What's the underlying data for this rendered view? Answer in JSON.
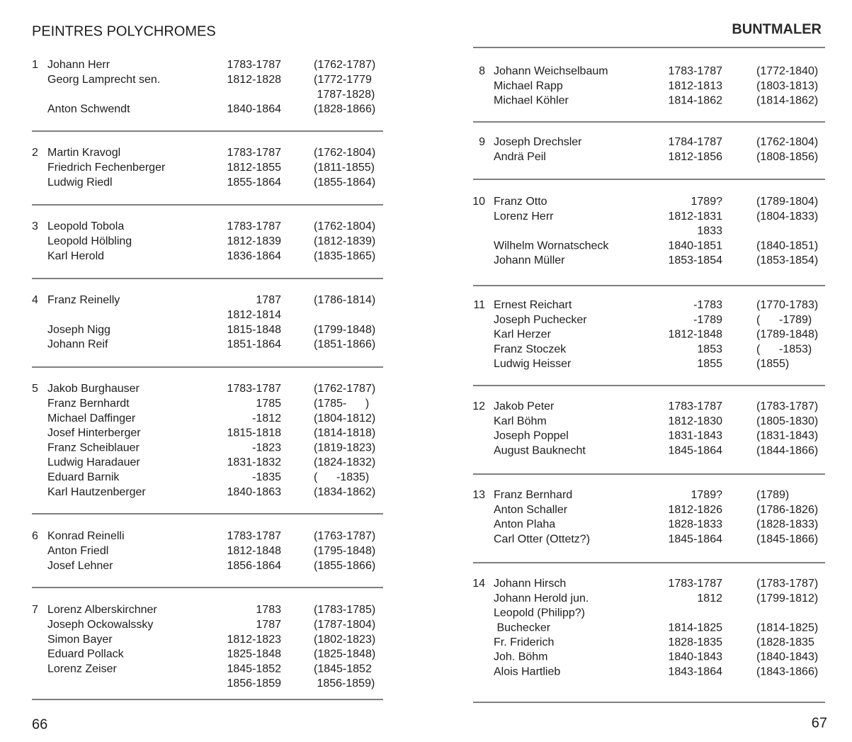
{
  "left": {
    "header": "PEINTRES POLYCHROMES",
    "page_number": "66",
    "groups": [
      {
        "number": 1,
        "rows": [
          {
            "name": "Johann Herr",
            "years": "1783-1787",
            "range": "(1762-1787)"
          },
          {
            "name": "Georg Lamprecht sen.",
            "years": "1812-1828",
            "range": "(1772-1779"
          },
          {
            "range": " 1787-1828)"
          },
          {
            "name": "Anton Schwendt",
            "years": "1840-1864",
            "range": "(1828-1866)"
          }
        ]
      },
      {
        "number": 2,
        "rows": [
          {
            "name": "Martin Kravogl",
            "years": "1783-1787",
            "range": "(1762-1804)"
          },
          {
            "name": "Friedrich Fechenberger",
            "years": "1812-1855",
            "range": "(1811-1855)"
          },
          {
            "name": "Ludwig Riedl",
            "years": "1855-1864",
            "range": "(1855-1864)"
          }
        ]
      },
      {
        "number": 3,
        "rows": [
          {
            "name": "Leopold Tobola",
            "years": "1783-1787",
            "range": "(1762-1804)"
          },
          {
            "name": "Leopold Hölbling",
            "years": "1812-1839",
            "range": "(1812-1839)"
          },
          {
            "name": "Karl Herold",
            "years": "1836-1864",
            "range": "(1835-1865)"
          }
        ]
      },
      {
        "number": 4,
        "rows": [
          {
            "name": "Franz Reinelly",
            "years": "1787",
            "range": "(1786-1814)"
          },
          {
            "years": "1812-1814"
          },
          {
            "name": "Joseph Nigg",
            "years": "1815-1848",
            "range": "(1799-1848)"
          },
          {
            "name": "Johann Reif",
            "years": "1851-1864",
            "range": "(1851-1866)"
          }
        ]
      },
      {
        "number": 5,
        "rows": [
          {
            "name": "Jakob Burghauser",
            "years": "1783-1787",
            "range": "(1762-1787)"
          },
          {
            "name": "Franz Bernhardt",
            "years": "1785",
            "range": "(1785-      )"
          },
          {
            "name": "Michael Daffinger",
            "years": "-1812",
            "range": "(1804-1812)"
          },
          {
            "name": "Josef Hinterberger",
            "years": "1815-1818",
            "range": "(1814-1818)"
          },
          {
            "name": "Franz Scheiblauer",
            "years": "-1823",
            "range": "(1819-1823)"
          },
          {
            "name": "Ludwig Haradauer",
            "years": "1831-1832",
            "range": "(1824-1832)"
          },
          {
            "name": "Eduard Barnik",
            "years": "-1835",
            "range": "(      -1835)"
          },
          {
            "name": "Karl Hautzenberger",
            "years": "1840-1863",
            "range": "(1834-1862)"
          }
        ]
      },
      {
        "number": 6,
        "rows": [
          {
            "name": "Konrad Reinelli",
            "years": "1783-1787",
            "range": "(1763-1787)"
          },
          {
            "name": "Anton Friedl",
            "years": "1812-1848",
            "range": "(1795-1848)"
          },
          {
            "name": "Josef Lehner",
            "years": "1856-1864",
            "range": "(1855-1866)"
          }
        ]
      },
      {
        "number": 7,
        "rows": [
          {
            "name": "Lorenz Alberskirchner",
            "years": "1783",
            "range": "(1783-1785)"
          },
          {
            "name": "Joseph Ockowalssky",
            "years": "1787",
            "range": "(1787-1804)"
          },
          {
            "name": "Simon Bayer",
            "years": "1812-1823",
            "range": "(1802-1823)"
          },
          {
            "name": "Eduard Pollack",
            "years": "1825-1848",
            "range": "(1825-1848)"
          },
          {
            "name": "Lorenz Zeiser",
            "years": "1845-1852",
            "range": "(1845-1852"
          },
          {
            "years": "1856-1859",
            "range": " 1856-1859)"
          }
        ]
      }
    ]
  },
  "right": {
    "header": "BUNTMALER",
    "page_number": "67",
    "groups": [
      {
        "number": 8,
        "rows": [
          {
            "name": "Johann Weichselbaum",
            "years": "1783-1787",
            "range": "(1772-1840)"
          },
          {
            "name": "Michael Rapp",
            "years": "1812-1813",
            "range": "(1803-1813)"
          },
          {
            "name": "Michael Köhler",
            "years": "1814-1862",
            "range": "(1814-1862)"
          }
        ]
      },
      {
        "number": 9,
        "rows": [
          {
            "name": "Joseph Drechsler",
            "years": "1784-1787",
            "range": "(1762-1804)"
          },
          {
            "name": "Andrä Peil",
            "years": "1812-1856",
            "range": "(1808-1856)"
          }
        ]
      },
      {
        "number": 10,
        "rows": [
          {
            "name": "Franz Otto",
            "years": "1789?",
            "range": "(1789-1804)"
          },
          {
            "name": "Lorenz Herr",
            "years": "1812-1831",
            "range": "(1804-1833)"
          },
          {
            "years": "1833"
          },
          {
            "name": "Wilhelm Wornatscheck",
            "years": "1840-1851",
            "range": "(1840-1851)"
          },
          {
            "name": "Johann Müller",
            "years": "1853-1854",
            "range": "(1853-1854)"
          }
        ]
      },
      {
        "number": 11,
        "rows": [
          {
            "name": "Ernest Reichart",
            "years": "-1783",
            "range": "(1770-1783)"
          },
          {
            "name": "Joseph Puchecker",
            "years": "-1789",
            "range": "(      -1789)"
          },
          {
            "name": "Karl Herzer",
            "years": "1812-1848",
            "range": "(1789-1848)"
          },
          {
            "name": "Franz Stoczek",
            "years": "1853",
            "range": "(      -1853)"
          },
          {
            "name": "Ludwig Heisser",
            "years": "1855",
            "range": "(1855)"
          }
        ]
      },
      {
        "number": 12,
        "rows": [
          {
            "name": "Jakob Peter",
            "years": "1783-1787",
            "range": "(1783-1787)"
          },
          {
            "name": "Karl Böhm",
            "years": "1812-1830",
            "range": "(1805-1830)"
          },
          {
            "name": "Joseph Poppel",
            "years": "1831-1843",
            "range": "(1831-1843)"
          },
          {
            "name": "August Bauknecht",
            "years": "1845-1864",
            "range": "(1844-1866)"
          }
        ]
      },
      {
        "number": 13,
        "rows": [
          {
            "name": "Franz Bernhard",
            "years": "1789?",
            "range": "(1789)"
          },
          {
            "name": "Anton Schaller",
            "years": "1812-1826",
            "range": "(1786-1826)"
          },
          {
            "name": "Anton Plaha",
            "years": "1828-1833",
            "range": "(1828-1833)"
          },
          {
            "name": "Carl Otter (Ottetz?)",
            "years": "1845-1864",
            "range": "(1845-1866)"
          }
        ]
      },
      {
        "number": 14,
        "rows": [
          {
            "name": "Johann Hirsch",
            "years": "1783-1787",
            "range": "(1783-1787)"
          },
          {
            "name": "Johann Herold jun.",
            "years": "1812",
            "range": "(1799-1812)"
          },
          {
            "name": "Leopold (Philipp?)"
          },
          {
            "name": " Buchecker",
            "years": "1814-1825",
            "range": "(1814-1825)"
          },
          {
            "name": "Fr. Friderich",
            "years": "1828-1835",
            "range": "(1828-1835"
          },
          {
            "name": "Joh. Böhm",
            "years": "1840-1843",
            "range": "(1840-1843)"
          },
          {
            "name": "Alois Hartlieb",
            "years": "1843-1864",
            "range": "(1843-1866)"
          }
        ]
      }
    ]
  }
}
